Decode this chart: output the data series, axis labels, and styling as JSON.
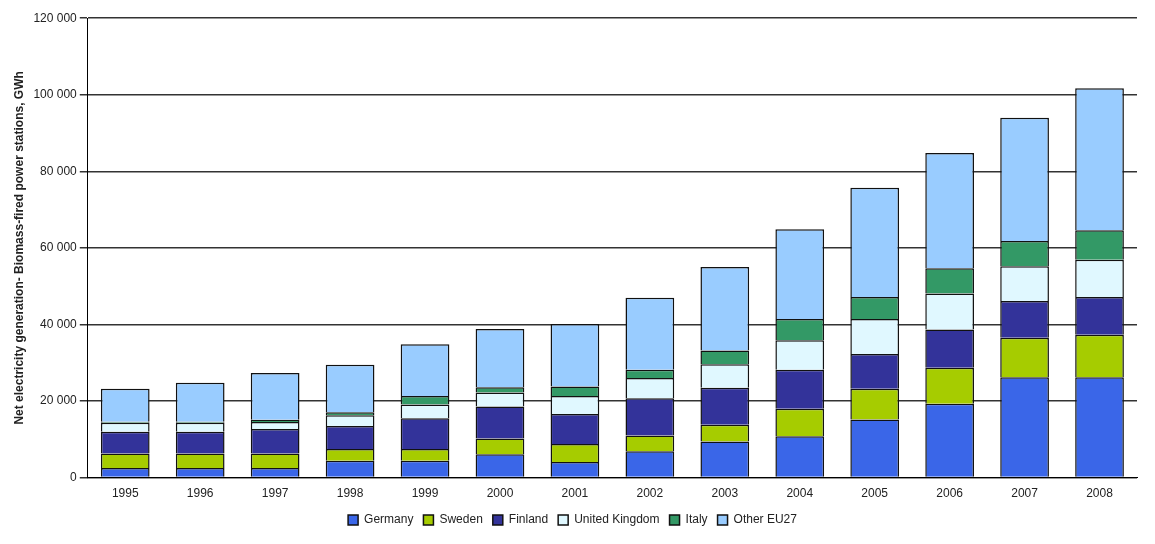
{
  "chart_data": {
    "type": "bar",
    "stacked": true,
    "ylabel": "Net electricity generation- Biomass-fired power stations, GWh",
    "categories": [
      "1995",
      "1996",
      "1997",
      "1998",
      "1999",
      "2000",
      "2001",
      "2002",
      "2003",
      "2004",
      "2005",
      "2006",
      "2007",
      "2008"
    ],
    "series": [
      {
        "name": "Germany",
        "color": "#3a66e8",
        "values": [
          2500,
          2500,
          2500,
          4400,
          4400,
          6100,
          4100,
          6900,
          9400,
          10800,
          15200,
          19300,
          26200,
          26200
        ]
      },
      {
        "name": "Sweden",
        "color": "#a6cc00",
        "values": [
          3800,
          3800,
          3800,
          3100,
          3100,
          4100,
          4700,
          4100,
          4400,
          7200,
          8000,
          9400,
          10300,
          11100
        ]
      },
      {
        "name": "Finland",
        "color": "#33339a",
        "values": [
          5700,
          5700,
          6400,
          6000,
          8000,
          8400,
          7800,
          9700,
          9700,
          10200,
          9100,
          10000,
          9600,
          9900
        ]
      },
      {
        "name": "United Kingdom",
        "color": "#e0f8ff",
        "values": [
          2300,
          2300,
          1800,
          2800,
          3600,
          3600,
          4700,
          5300,
          6100,
          7700,
          9100,
          9400,
          9100,
          9700
        ]
      },
      {
        "name": "Italy",
        "color": "#339966",
        "values": [
          300,
          300,
          600,
          800,
          2200,
          1400,
          2500,
          2200,
          3600,
          5500,
          5800,
          6600,
          6600,
          7700
        ]
      },
      {
        "name": "Other EU27",
        "color": "#99ccff",
        "values": [
          8600,
          10200,
          12200,
          12400,
          13500,
          15200,
          16300,
          18800,
          21800,
          23500,
          28500,
          30100,
          32200,
          37100
        ]
      }
    ],
    "ylim": [
      0,
      120000
    ],
    "yticks": [
      {
        "value": 0,
        "label": "0"
      },
      {
        "value": 20000,
        "label": "20 000"
      },
      {
        "value": 40000,
        "label": "40 000"
      },
      {
        "value": 60000,
        "label": "60 000"
      },
      {
        "value": 80000,
        "label": "80 000"
      },
      {
        "value": 100000,
        "label": "100 000"
      },
      {
        "value": 120000,
        "label": "120 000"
      }
    ],
    "grid": "y",
    "legend": "bottom"
  }
}
